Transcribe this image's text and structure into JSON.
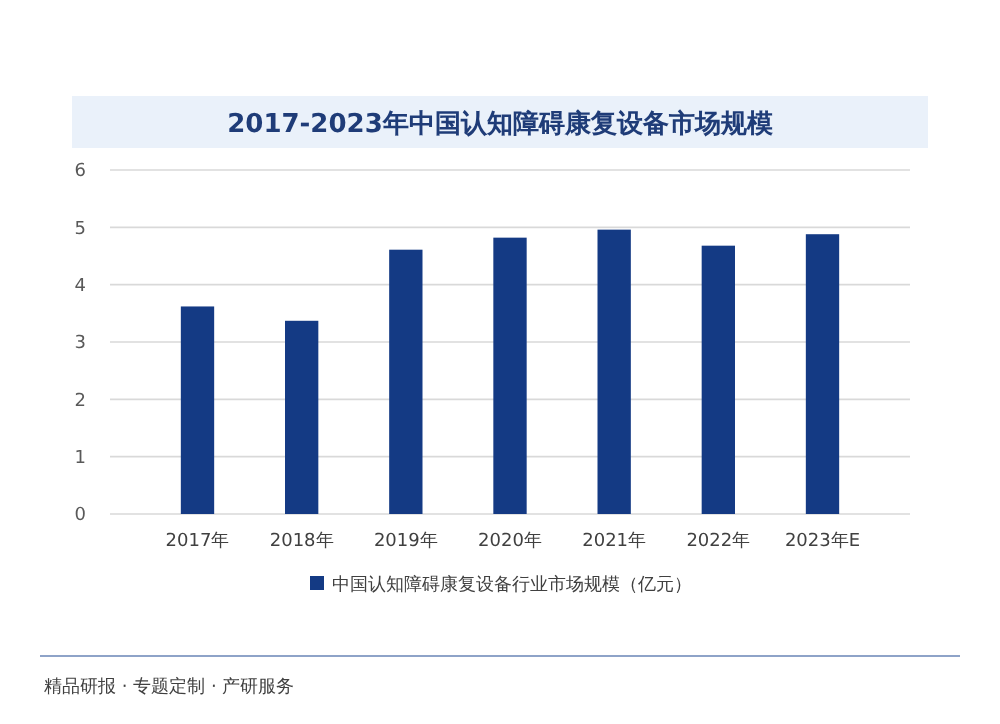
{
  "chart_data": {
    "type": "bar",
    "title": "2017-2023年中国认知障碍康复设备市场规模",
    "categories": [
      "2017年",
      "2018年",
      "2019年",
      "2020年",
      "2021年",
      "2022年",
      "2023年E"
    ],
    "series": [
      {
        "name": "中国认知障碍康复设备行业市场规模（亿元）",
        "color": "#143a84",
        "values": [
          3.62,
          3.37,
          4.61,
          4.82,
          4.96,
          4.68,
          4.88
        ]
      }
    ],
    "ylim": [
      0,
      6
    ],
    "yticks": [
      0,
      1,
      2,
      3,
      4,
      5,
      6
    ],
    "grid": "y",
    "legend": "bottom",
    "annotations": [
      "精品研报 · 专题定制 · 产研服务"
    ]
  }
}
